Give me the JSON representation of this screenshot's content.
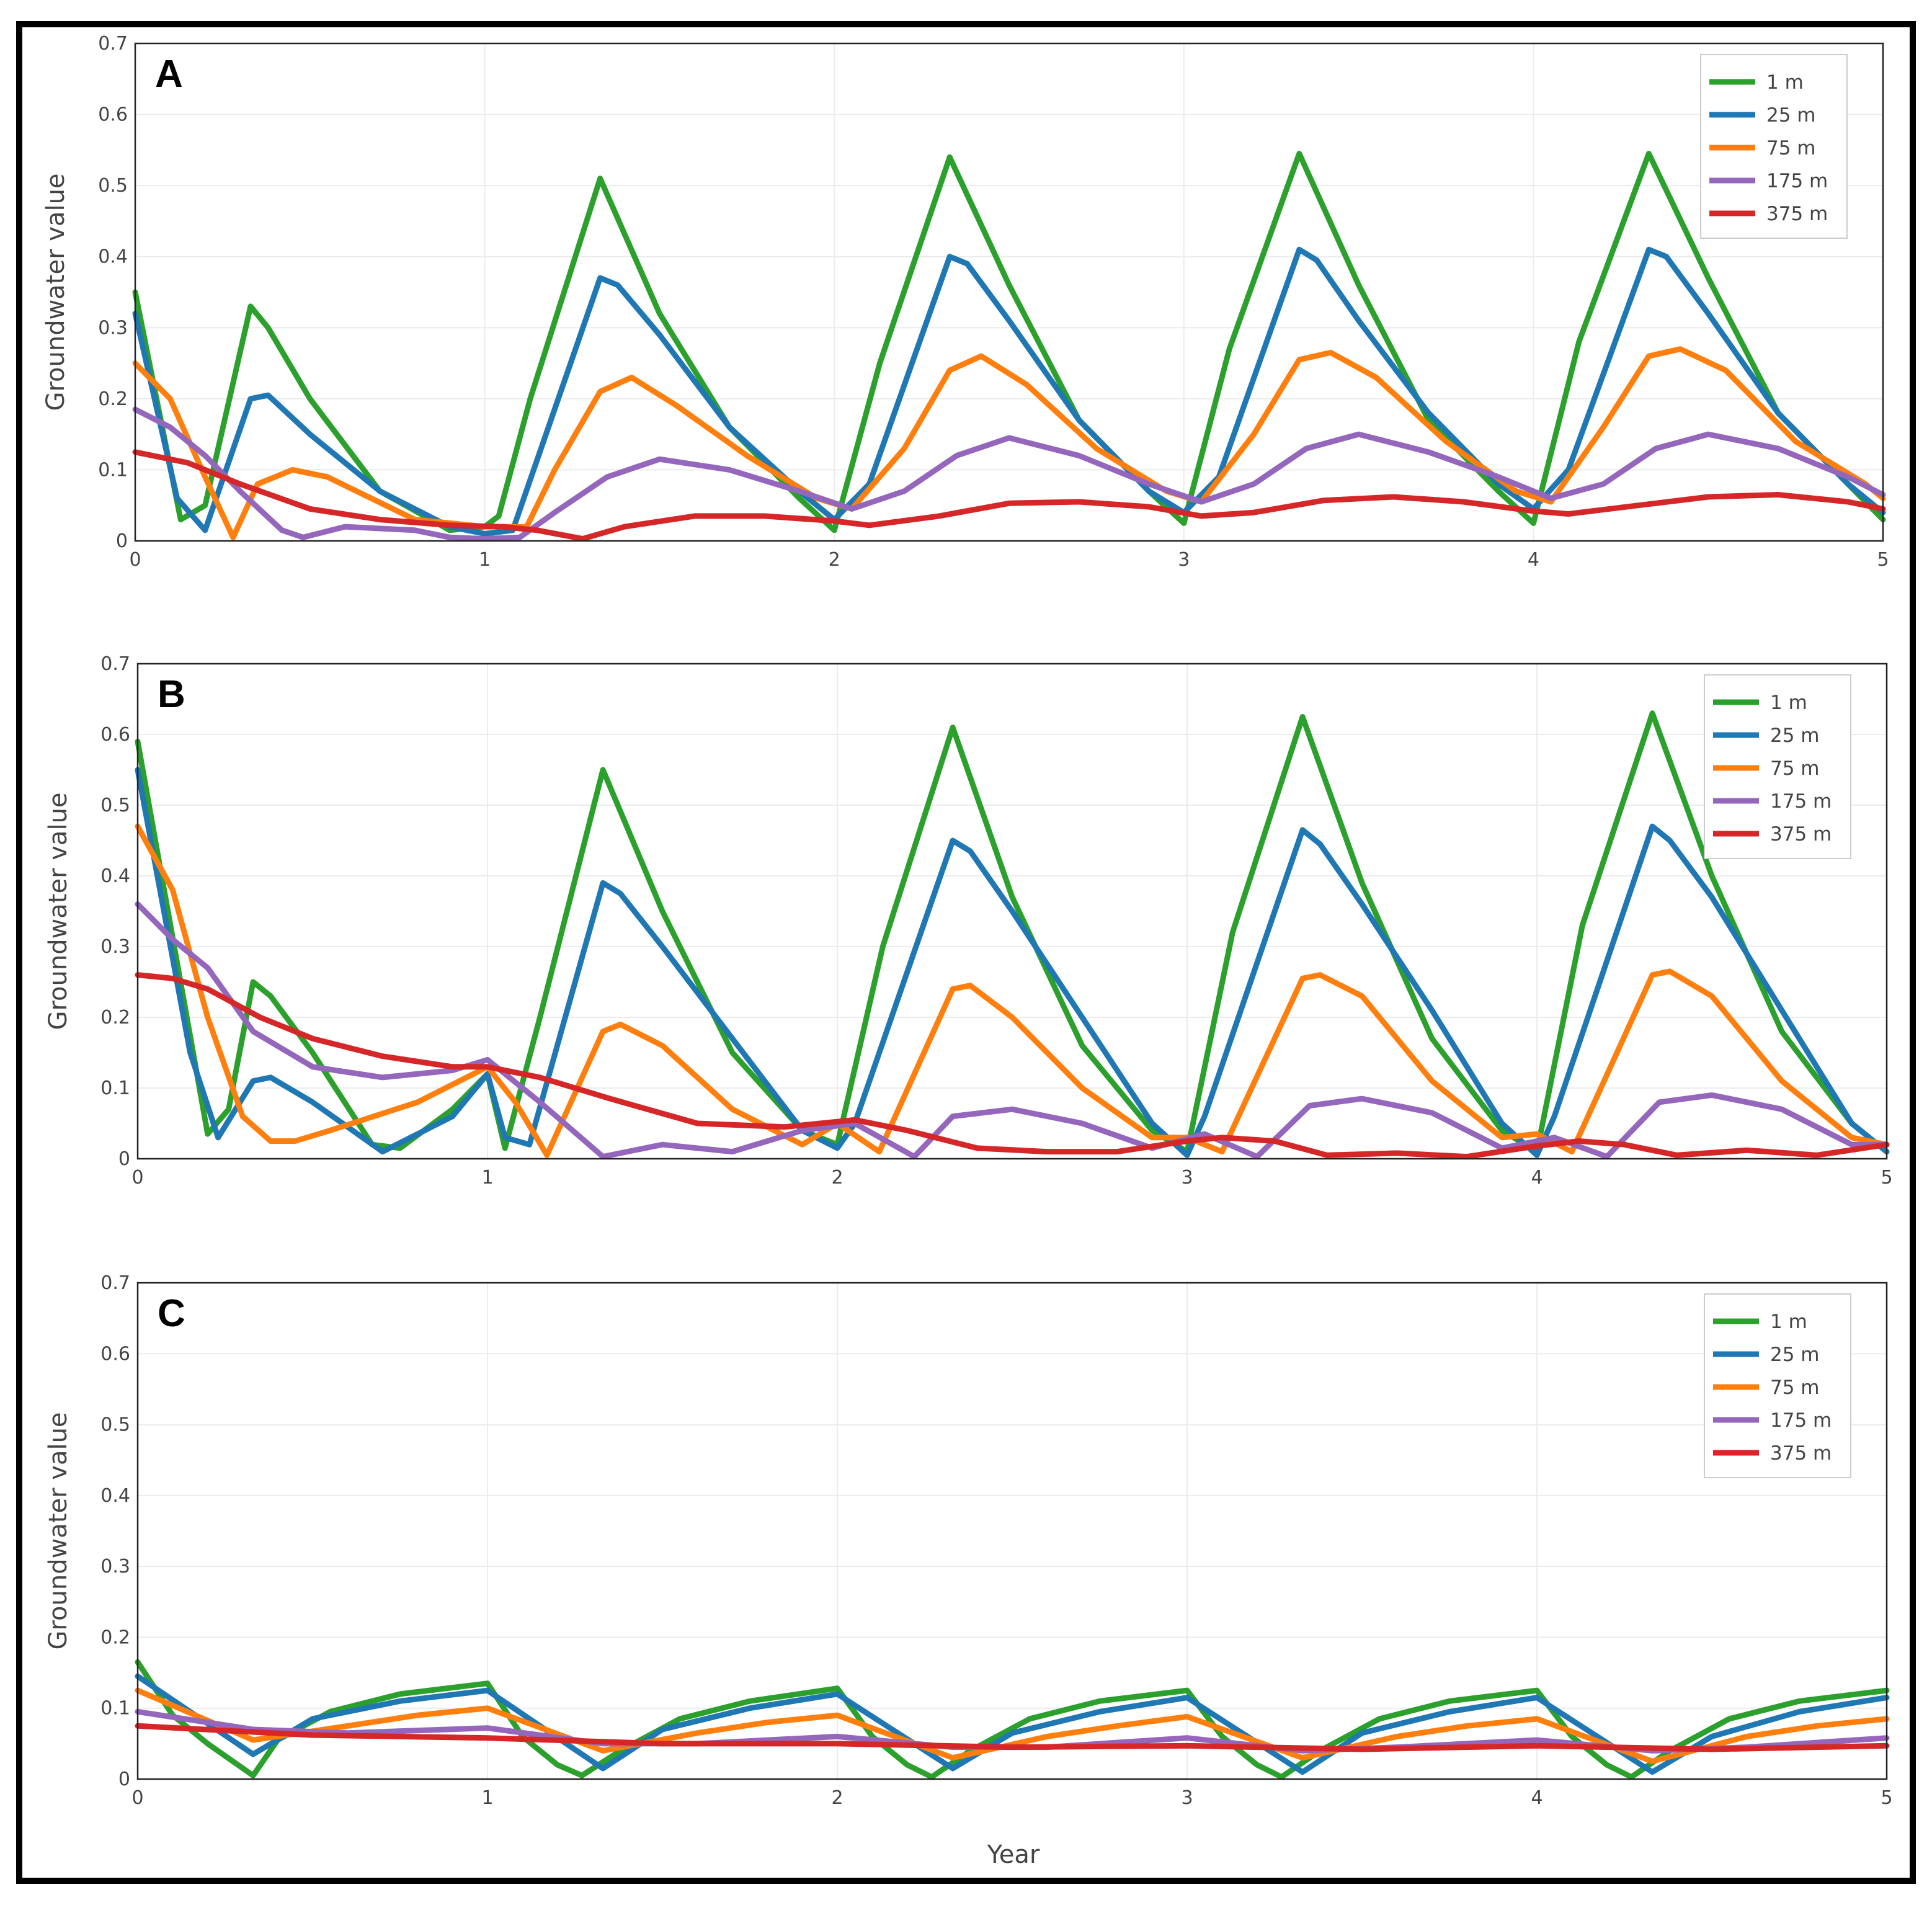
{
  "figure": {
    "xlabel": "Year",
    "ylabel": "Groundwater value",
    "xticks": [
      "0",
      "1",
      "2",
      "3",
      "4",
      "5"
    ],
    "yticks": [
      "0",
      "0.1",
      "0.2",
      "0.3",
      "0.4",
      "0.5",
      "0.6",
      "0.7"
    ],
    "legend": [
      "1 m",
      "25 m",
      "75 m",
      "175 m",
      "375 m"
    ],
    "colors": [
      "#2ca02c",
      "#1f77b4",
      "#ff7f0e",
      "#9467bd",
      "#d62728"
    ]
  },
  "chart_data": [
    {
      "type": "line",
      "panel_label": "A",
      "xlim": [
        0,
        5
      ],
      "ylim": [
        0,
        0.7
      ],
      "grid": true,
      "legend_position": "top-right",
      "series": [
        {
          "name": "1 m",
          "x": [
            0,
            0.13,
            0.2,
            0.33,
            0.38,
            0.5,
            0.7,
            0.9,
            1.0,
            1.04,
            1.13,
            1.33,
            1.5,
            1.7,
            1.9,
            2.0,
            2.13,
            2.33,
            2.5,
            2.7,
            2.9,
            3.0,
            3.13,
            3.33,
            3.5,
            3.7,
            3.9,
            4.0,
            4.13,
            4.33,
            4.5,
            4.7,
            4.9,
            5.0
          ],
          "y": [
            0.35,
            0.03,
            0.05,
            0.33,
            0.3,
            0.2,
            0.07,
            0.015,
            0.02,
            0.035,
            0.2,
            0.51,
            0.32,
            0.16,
            0.06,
            0.015,
            0.25,
            0.54,
            0.36,
            0.17,
            0.07,
            0.025,
            0.27,
            0.545,
            0.36,
            0.17,
            0.07,
            0.025,
            0.28,
            0.545,
            0.37,
            0.18,
            0.08,
            0.03
          ]
        },
        {
          "name": "25 m",
          "x": [
            0,
            0.12,
            0.2,
            0.33,
            0.38,
            0.5,
            0.7,
            0.9,
            1.0,
            1.08,
            1.33,
            1.38,
            1.5,
            1.7,
            1.9,
            2.0,
            2.1,
            2.33,
            2.38,
            2.5,
            2.7,
            2.9,
            3.0,
            3.1,
            3.33,
            3.38,
            3.5,
            3.7,
            3.9,
            4.0,
            4.1,
            4.33,
            4.38,
            4.5,
            4.7,
            4.9,
            5.0
          ],
          "y": [
            0.32,
            0.06,
            0.015,
            0.2,
            0.205,
            0.15,
            0.07,
            0.02,
            0.01,
            0.015,
            0.37,
            0.36,
            0.29,
            0.16,
            0.07,
            0.03,
            0.08,
            0.4,
            0.39,
            0.31,
            0.17,
            0.07,
            0.04,
            0.09,
            0.41,
            0.395,
            0.31,
            0.18,
            0.08,
            0.045,
            0.1,
            0.41,
            0.4,
            0.32,
            0.18,
            0.08,
            0.04
          ]
        },
        {
          "name": "75 m",
          "x": [
            0,
            0.1,
            0.2,
            0.28,
            0.35,
            0.45,
            0.55,
            0.8,
            1.0,
            1.12,
            1.2,
            1.33,
            1.42,
            1.55,
            1.75,
            1.95,
            2.05,
            2.2,
            2.33,
            2.42,
            2.55,
            2.75,
            2.95,
            3.05,
            3.2,
            3.33,
            3.42,
            3.55,
            3.75,
            3.95,
            4.05,
            4.2,
            4.33,
            4.42,
            4.55,
            4.75,
            4.95,
            5.0
          ],
          "y": [
            0.25,
            0.2,
            0.09,
            0.005,
            0.08,
            0.1,
            0.09,
            0.03,
            0.02,
            0.02,
            0.1,
            0.21,
            0.23,
            0.19,
            0.12,
            0.06,
            0.045,
            0.13,
            0.24,
            0.26,
            0.22,
            0.13,
            0.07,
            0.055,
            0.15,
            0.255,
            0.265,
            0.23,
            0.14,
            0.07,
            0.055,
            0.16,
            0.26,
            0.27,
            0.24,
            0.14,
            0.08,
            0.06
          ]
        },
        {
          "name": "175 m",
          "x": [
            0,
            0.1,
            0.2,
            0.3,
            0.42,
            0.48,
            0.6,
            0.8,
            0.9,
            1.0,
            1.1,
            1.2,
            1.35,
            1.5,
            1.7,
            1.9,
            2.05,
            2.2,
            2.35,
            2.5,
            2.7,
            2.9,
            3.05,
            3.2,
            3.35,
            3.5,
            3.7,
            3.9,
            4.05,
            4.2,
            4.35,
            4.5,
            4.7,
            4.9,
            5.0
          ],
          "y": [
            0.185,
            0.16,
            0.12,
            0.07,
            0.015,
            0.005,
            0.02,
            0.015,
            0.005,
            0.003,
            0.005,
            0.04,
            0.09,
            0.115,
            0.1,
            0.07,
            0.045,
            0.07,
            0.12,
            0.145,
            0.12,
            0.08,
            0.055,
            0.08,
            0.13,
            0.15,
            0.125,
            0.09,
            0.06,
            0.08,
            0.13,
            0.15,
            0.13,
            0.09,
            0.065
          ]
        },
        {
          "name": "375 m",
          "x": [
            0,
            0.15,
            0.3,
            0.5,
            0.7,
            0.9,
            1.05,
            1.15,
            1.28,
            1.4,
            1.6,
            1.8,
            2.0,
            2.1,
            2.3,
            2.5,
            2.7,
            2.9,
            3.05,
            3.2,
            3.4,
            3.6,
            3.8,
            4.0,
            4.1,
            4.3,
            4.5,
            4.7,
            4.9,
            5.0
          ],
          "y": [
            0.125,
            0.11,
            0.08,
            0.045,
            0.03,
            0.022,
            0.02,
            0.015,
            0.003,
            0.02,
            0.035,
            0.035,
            0.028,
            0.022,
            0.035,
            0.053,
            0.055,
            0.048,
            0.035,
            0.04,
            0.057,
            0.062,
            0.055,
            0.042,
            0.038,
            0.05,
            0.062,
            0.065,
            0.055,
            0.045
          ]
        }
      ]
    },
    {
      "type": "line",
      "panel_label": "B",
      "xlim": [
        0,
        5
      ],
      "ylim": [
        0,
        0.7
      ],
      "grid": true,
      "legend_position": "top-right",
      "series": [
        {
          "name": "1 m",
          "x": [
            0,
            0.2,
            0.26,
            0.33,
            0.38,
            0.5,
            0.67,
            0.75,
            0.9,
            1.0,
            1.05,
            1.15,
            1.33,
            1.5,
            1.7,
            1.9,
            2.0,
            2.13,
            2.33,
            2.5,
            2.7,
            2.9,
            3.0,
            3.13,
            3.33,
            3.5,
            3.7,
            3.9,
            4.0,
            4.13,
            4.33,
            4.5,
            4.7,
            4.9,
            5.0
          ],
          "y": [
            0.59,
            0.035,
            0.07,
            0.25,
            0.23,
            0.15,
            0.02,
            0.015,
            0.07,
            0.12,
            0.015,
            0.2,
            0.55,
            0.35,
            0.15,
            0.04,
            0.02,
            0.3,
            0.61,
            0.37,
            0.16,
            0.04,
            0.01,
            0.32,
            0.625,
            0.39,
            0.17,
            0.04,
            0.01,
            0.33,
            0.63,
            0.4,
            0.18,
            0.05,
            0.01
          ]
        },
        {
          "name": "25 m",
          "x": [
            0,
            0.15,
            0.23,
            0.33,
            0.38,
            0.5,
            0.7,
            0.9,
            1.0,
            1.05,
            1.12,
            1.33,
            1.38,
            1.5,
            1.7,
            1.9,
            2.0,
            2.05,
            2.33,
            2.38,
            2.5,
            2.7,
            2.9,
            3.0,
            3.05,
            3.33,
            3.38,
            3.5,
            3.7,
            3.9,
            4.0,
            4.05,
            4.33,
            4.38,
            4.5,
            4.7,
            4.9,
            5.0
          ],
          "y": [
            0.55,
            0.15,
            0.03,
            0.11,
            0.115,
            0.08,
            0.01,
            0.06,
            0.12,
            0.03,
            0.02,
            0.39,
            0.375,
            0.3,
            0.17,
            0.04,
            0.015,
            0.05,
            0.45,
            0.435,
            0.35,
            0.2,
            0.05,
            0.005,
            0.06,
            0.465,
            0.445,
            0.36,
            0.21,
            0.05,
            0.005,
            0.06,
            0.47,
            0.45,
            0.37,
            0.21,
            0.05,
            0.01
          ]
        },
        {
          "name": "75 m",
          "x": [
            0,
            0.1,
            0.2,
            0.3,
            0.38,
            0.45,
            0.55,
            0.8,
            1.0,
            1.08,
            1.17,
            1.33,
            1.38,
            1.5,
            1.7,
            1.9,
            2.0,
            2.12,
            2.33,
            2.38,
            2.5,
            2.7,
            2.9,
            3.0,
            3.1,
            3.33,
            3.38,
            3.5,
            3.7,
            3.9,
            4.0,
            4.1,
            4.33,
            4.38,
            4.5,
            4.7,
            4.9,
            5.0
          ],
          "y": [
            0.47,
            0.38,
            0.2,
            0.06,
            0.025,
            0.025,
            0.04,
            0.08,
            0.13,
            0.08,
            0.005,
            0.18,
            0.19,
            0.16,
            0.07,
            0.02,
            0.05,
            0.01,
            0.24,
            0.245,
            0.2,
            0.1,
            0.03,
            0.03,
            0.01,
            0.255,
            0.26,
            0.23,
            0.11,
            0.03,
            0.035,
            0.01,
            0.26,
            0.265,
            0.23,
            0.11,
            0.03,
            0.02
          ]
        },
        {
          "name": "175 m",
          "x": [
            0,
            0.1,
            0.2,
            0.33,
            0.5,
            0.7,
            0.9,
            1.0,
            1.15,
            1.33,
            1.5,
            1.7,
            1.9,
            2.05,
            2.22,
            2.33,
            2.5,
            2.7,
            2.9,
            3.05,
            3.2,
            3.35,
            3.5,
            3.7,
            3.9,
            4.05,
            4.2,
            4.35,
            4.5,
            4.7,
            4.9,
            5.0
          ],
          "y": [
            0.36,
            0.31,
            0.27,
            0.18,
            0.13,
            0.115,
            0.125,
            0.14,
            0.08,
            0.003,
            0.02,
            0.01,
            0.04,
            0.05,
            0.003,
            0.06,
            0.07,
            0.05,
            0.015,
            0.035,
            0.003,
            0.075,
            0.085,
            0.065,
            0.015,
            0.03,
            0.003,
            0.08,
            0.09,
            0.07,
            0.02,
            0.02
          ]
        },
        {
          "name": "375 m",
          "x": [
            0,
            0.1,
            0.2,
            0.35,
            0.5,
            0.7,
            0.9,
            1.0,
            1.15,
            1.35,
            1.6,
            1.85,
            2.05,
            2.2,
            2.4,
            2.6,
            2.8,
            3.0,
            3.1,
            3.25,
            3.4,
            3.6,
            3.8,
            4.0,
            4.12,
            4.25,
            4.4,
            4.6,
            4.8,
            5.0
          ],
          "y": [
            0.26,
            0.255,
            0.24,
            0.2,
            0.17,
            0.145,
            0.13,
            0.13,
            0.115,
            0.085,
            0.05,
            0.045,
            0.055,
            0.04,
            0.015,
            0.01,
            0.01,
            0.025,
            0.03,
            0.025,
            0.005,
            0.008,
            0.003,
            0.018,
            0.025,
            0.02,
            0.005,
            0.012,
            0.005,
            0.02
          ]
        }
      ]
    },
    {
      "type": "line",
      "panel_label": "C",
      "xlim": [
        0,
        5
      ],
      "ylim": [
        0,
        0.7
      ],
      "grid": true,
      "legend_position": "top-right",
      "series": [
        {
          "name": "1 m",
          "x": [
            0,
            0.1,
            0.2,
            0.33,
            0.4,
            0.55,
            0.75,
            1.0,
            1.1,
            1.2,
            1.27,
            1.38,
            1.55,
            1.75,
            2.0,
            2.1,
            2.2,
            2.27,
            2.38,
            2.55,
            2.75,
            3.0,
            3.1,
            3.2,
            3.27,
            3.38,
            3.55,
            3.75,
            4.0,
            4.1,
            4.2,
            4.27,
            4.38,
            4.55,
            4.75,
            5.0
          ],
          "y": [
            0.165,
            0.09,
            0.05,
            0.005,
            0.055,
            0.095,
            0.12,
            0.135,
            0.06,
            0.02,
            0.005,
            0.04,
            0.085,
            0.11,
            0.128,
            0.06,
            0.02,
            0.003,
            0.04,
            0.085,
            0.11,
            0.125,
            0.06,
            0.02,
            0.003,
            0.04,
            0.085,
            0.11,
            0.125,
            0.06,
            0.02,
            0.003,
            0.04,
            0.085,
            0.11,
            0.125
          ]
        },
        {
          "name": "25 m",
          "x": [
            0,
            0.33,
            0.5,
            0.75,
            1.0,
            1.33,
            1.5,
            1.75,
            2.0,
            2.33,
            2.5,
            2.75,
            3.0,
            3.33,
            3.5,
            3.75,
            4.0,
            4.33,
            4.5,
            4.75,
            5.0
          ],
          "y": [
            0.145,
            0.035,
            0.085,
            0.11,
            0.125,
            0.015,
            0.07,
            0.1,
            0.12,
            0.015,
            0.065,
            0.095,
            0.115,
            0.01,
            0.065,
            0.095,
            0.115,
            0.01,
            0.06,
            0.095,
            0.115
          ]
        },
        {
          "name": "75 m",
          "x": [
            0,
            0.33,
            0.6,
            0.8,
            1.0,
            1.33,
            1.6,
            1.8,
            2.0,
            2.33,
            2.6,
            2.8,
            3.0,
            3.33,
            3.6,
            3.8,
            4.0,
            4.33,
            4.6,
            4.8,
            5.0
          ],
          "y": [
            0.125,
            0.055,
            0.075,
            0.09,
            0.1,
            0.04,
            0.065,
            0.08,
            0.09,
            0.03,
            0.06,
            0.075,
            0.088,
            0.03,
            0.06,
            0.075,
            0.085,
            0.025,
            0.06,
            0.075,
            0.085
          ]
        },
        {
          "name": "175 m",
          "x": [
            0,
            0.33,
            0.6,
            1.0,
            1.33,
            1.6,
            2.0,
            2.33,
            2.6,
            3.0,
            3.33,
            3.6,
            4.0,
            4.33,
            4.6,
            5.0
          ],
          "y": [
            0.095,
            0.07,
            0.065,
            0.072,
            0.05,
            0.05,
            0.06,
            0.045,
            0.045,
            0.058,
            0.04,
            0.045,
            0.055,
            0.04,
            0.045,
            0.058
          ]
        },
        {
          "name": "375 m",
          "x": [
            0,
            0.5,
            1.0,
            1.5,
            2.0,
            2.5,
            3.0,
            3.5,
            4.0,
            4.5,
            5.0
          ],
          "y": [
            0.075,
            0.062,
            0.058,
            0.05,
            0.05,
            0.045,
            0.047,
            0.042,
            0.047,
            0.042,
            0.047
          ]
        }
      ]
    }
  ]
}
